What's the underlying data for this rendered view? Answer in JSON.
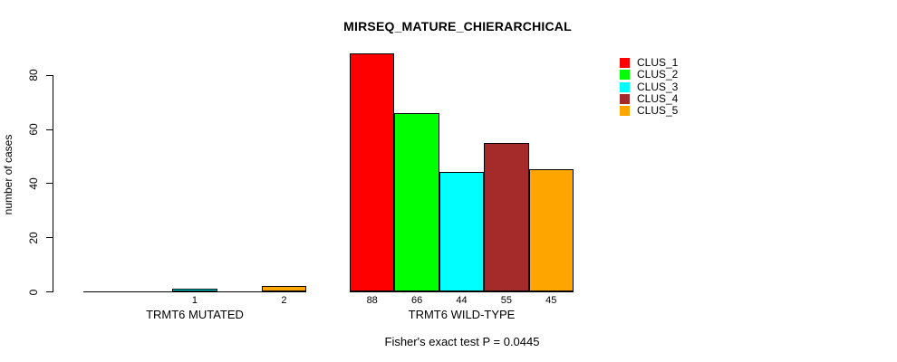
{
  "chart_data": {
    "type": "bar",
    "title": "MIRSEQ_MATURE_CHIERARCHICAL",
    "ylabel": "number of cases",
    "xlabel": "",
    "ylim": [
      0,
      88
    ],
    "yticks": [
      0,
      20,
      40,
      60,
      80
    ],
    "grid": false,
    "legend_position": "top-right",
    "categories": [
      "TRMT6 MUTATED",
      "TRMT6 WILD-TYPE"
    ],
    "series": [
      {
        "name": "CLUS_1",
        "color": "#FF0000",
        "values": [
          0,
          88
        ]
      },
      {
        "name": "CLUS_2",
        "color": "#00FF00",
        "values": [
          0,
          66
        ]
      },
      {
        "name": "CLUS_3",
        "color": "#00FFFF",
        "values": [
          1,
          44
        ]
      },
      {
        "name": "CLUS_4",
        "color": "#A52A2A",
        "values": [
          0,
          55
        ]
      },
      {
        "name": "CLUS_5",
        "color": "#FFA500",
        "values": [
          2,
          45
        ]
      }
    ],
    "bar_labels": {
      "TRMT6 MUTATED": [
        "",
        "",
        "1",
        "",
        "2"
      ],
      "TRMT6 WILD-TYPE": [
        "88",
        "66",
        "44",
        "55",
        "45"
      ]
    },
    "annotation": "Fisher's exact test P = 0.0445"
  }
}
